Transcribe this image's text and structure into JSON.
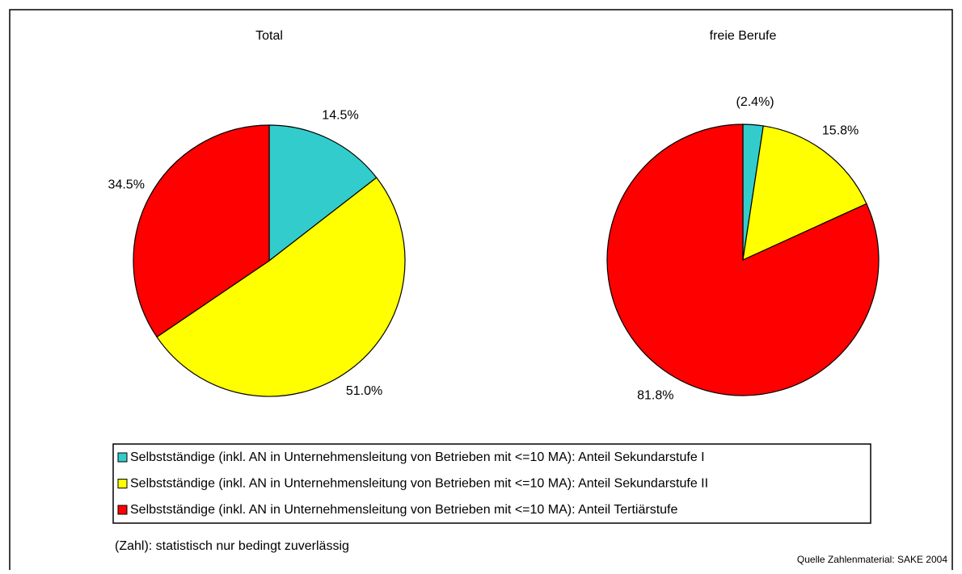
{
  "chart_data": [
    {
      "type": "pie",
      "title": "Total",
      "values": [
        14.5,
        51.0,
        34.5
      ],
      "value_labels": [
        "14.5%",
        "51.0%",
        "34.5%"
      ]
    },
    {
      "type": "pie",
      "title": "freie Berufe",
      "values": [
        2.4,
        15.8,
        81.8
      ],
      "value_labels": [
        "(2.4%)",
        "15.8%",
        "81.8%"
      ]
    }
  ],
  "legend": {
    "entries": [
      "Selbstständige (inkl. AN in Unternehmensleitung von Betrieben mit <=10 MA): Anteil Sekundarstufe I",
      "Selbstständige (inkl. AN in Unternehmensleitung von Betrieben mit <=10 MA): Anteil Sekundarstufe II",
      "Selbstständige (inkl. AN in Unternehmensleitung von Betrieben mit <=10 MA): Anteil Tertiärstufe"
    ],
    "colors": [
      "#33cccc",
      "#ffff00",
      "#ff0000"
    ]
  },
  "note": "(Zahl): statistisch nur bedingt zuverlässig",
  "source": "Quelle Zahlenmaterial: SAKE 2004"
}
